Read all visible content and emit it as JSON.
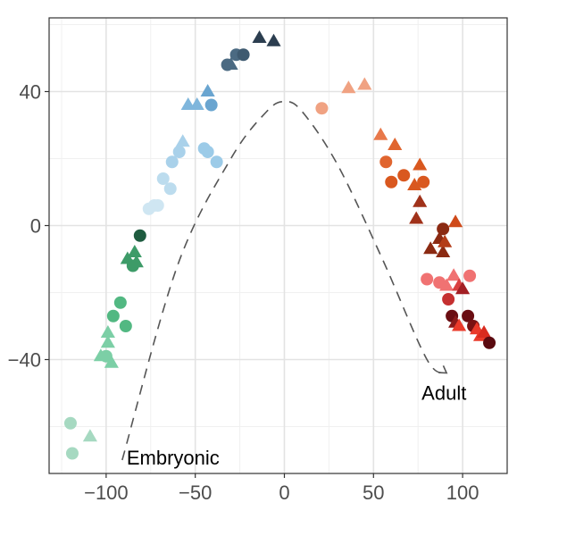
{
  "chart_data": {
    "type": "scatter",
    "title": "",
    "xlabel": "",
    "ylabel": "",
    "xlim": [
      -132,
      125
    ],
    "ylim": [
      -74,
      62
    ],
    "grid": true,
    "x_ticks": [
      -100,
      -50,
      0,
      50,
      100
    ],
    "x_tick_labels": [
      "−100",
      "−50",
      "0",
      "50",
      "100"
    ],
    "y_ticks": [
      -40,
      0,
      40
    ],
    "y_tick_labels": [
      "−40",
      "0",
      "40"
    ],
    "annotations": [
      {
        "text": "Embryonic",
        "x": -90,
        "y": -70
      },
      {
        "text": "Adult",
        "x": 77,
        "y": -52
      }
    ],
    "trajectory": [
      [
        -91,
        -70
      ],
      [
        -60,
        -12
      ],
      [
        -30,
        20
      ],
      [
        -10,
        34
      ],
      [
        0,
        37
      ],
      [
        10,
        34
      ],
      [
        30,
        18
      ],
      [
        55,
        -10
      ],
      [
        80,
        -40
      ],
      [
        91,
        -44
      ]
    ],
    "points": [
      {
        "x": -120,
        "y": -59,
        "shape": "circle",
        "color": "#a6d9c1"
      },
      {
        "x": -119,
        "y": -68,
        "shape": "circle",
        "color": "#a6d9c1"
      },
      {
        "x": -109,
        "y": -63,
        "shape": "triangle",
        "color": "#a6d9c1"
      },
      {
        "x": -103,
        "y": -39,
        "shape": "triangle",
        "color": "#7ccfa6"
      },
      {
        "x": -100,
        "y": -39,
        "shape": "circle",
        "color": "#7ccfa6"
      },
      {
        "x": -99,
        "y": -35,
        "shape": "triangle",
        "color": "#7ccfa6"
      },
      {
        "x": -99,
        "y": -32,
        "shape": "triangle",
        "color": "#7ccfa6"
      },
      {
        "x": -97,
        "y": -41,
        "shape": "triangle",
        "color": "#7ccfa6"
      },
      {
        "x": -96,
        "y": -27,
        "shape": "circle",
        "color": "#52b882"
      },
      {
        "x": -92,
        "y": -23,
        "shape": "circle",
        "color": "#52b882"
      },
      {
        "x": -89,
        "y": -30,
        "shape": "circle",
        "color": "#52b882"
      },
      {
        "x": -88,
        "y": -10,
        "shape": "triangle",
        "color": "#3d9b68"
      },
      {
        "x": -85,
        "y": -12,
        "shape": "circle",
        "color": "#3d9b68"
      },
      {
        "x": -84,
        "y": -8,
        "shape": "triangle",
        "color": "#3d9b68"
      },
      {
        "x": -83,
        "y": -11,
        "shape": "triangle",
        "color": "#3d9b68"
      },
      {
        "x": -81,
        "y": -3,
        "shape": "circle",
        "color": "#1f5c40"
      },
      {
        "x": -76,
        "y": 5,
        "shape": "circle",
        "color": "#cfe6f2"
      },
      {
        "x": -73,
        "y": 6,
        "shape": "circle",
        "color": "#cfe6f2"
      },
      {
        "x": -71,
        "y": 6,
        "shape": "circle",
        "color": "#cfe6f2"
      },
      {
        "x": -68,
        "y": 14,
        "shape": "circle",
        "color": "#bcdcee"
      },
      {
        "x": -64,
        "y": 11,
        "shape": "circle",
        "color": "#bcdcee"
      },
      {
        "x": -63,
        "y": 19,
        "shape": "circle",
        "color": "#a9d1ea"
      },
      {
        "x": -59,
        "y": 22,
        "shape": "circle",
        "color": "#a9d1ea"
      },
      {
        "x": -57,
        "y": 25,
        "shape": "triangle",
        "color": "#a9d1ea"
      },
      {
        "x": -54,
        "y": 36,
        "shape": "triangle",
        "color": "#7fb6dc"
      },
      {
        "x": -49,
        "y": 36,
        "shape": "triangle",
        "color": "#7fb6dc"
      },
      {
        "x": -45,
        "y": 23,
        "shape": "circle",
        "color": "#9ccbe8"
      },
      {
        "x": -43,
        "y": 22,
        "shape": "circle",
        "color": "#9ccbe8"
      },
      {
        "x": -43,
        "y": 40,
        "shape": "triangle",
        "color": "#6aa5d0"
      },
      {
        "x": -41,
        "y": 36,
        "shape": "circle",
        "color": "#6aa5d0"
      },
      {
        "x": -38,
        "y": 19,
        "shape": "circle",
        "color": "#9ccbe8"
      },
      {
        "x": -32,
        "y": 48,
        "shape": "circle",
        "color": "#4b6a82"
      },
      {
        "x": -30,
        "y": 48,
        "shape": "triangle",
        "color": "#4b6a82"
      },
      {
        "x": -27,
        "y": 51,
        "shape": "circle",
        "color": "#4b6a82"
      },
      {
        "x": -23,
        "y": 51,
        "shape": "circle",
        "color": "#3e5a70"
      },
      {
        "x": -14,
        "y": 56,
        "shape": "triangle",
        "color": "#2c3e50"
      },
      {
        "x": -6,
        "y": 55,
        "shape": "triangle",
        "color": "#2c3e50"
      },
      {
        "x": 21,
        "y": 35,
        "shape": "circle",
        "color": "#f0a282"
      },
      {
        "x": 36,
        "y": 41,
        "shape": "triangle",
        "color": "#f0a282"
      },
      {
        "x": 45,
        "y": 42,
        "shape": "triangle",
        "color": "#f0a282"
      },
      {
        "x": 54,
        "y": 27,
        "shape": "triangle",
        "color": "#e8784a"
      },
      {
        "x": 57,
        "y": 19,
        "shape": "circle",
        "color": "#e0652f"
      },
      {
        "x": 62,
        "y": 24,
        "shape": "triangle",
        "color": "#e0652f"
      },
      {
        "x": 60,
        "y": 13,
        "shape": "circle",
        "color": "#d9581f"
      },
      {
        "x": 67,
        "y": 15,
        "shape": "circle",
        "color": "#d9581f"
      },
      {
        "x": 73,
        "y": 12,
        "shape": "triangle",
        "color": "#d9581f"
      },
      {
        "x": 78,
        "y": 13,
        "shape": "circle",
        "color": "#d9581f"
      },
      {
        "x": 76,
        "y": 18,
        "shape": "triangle",
        "color": "#d9581f"
      },
      {
        "x": 76,
        "y": 7,
        "shape": "triangle",
        "color": "#a0321a"
      },
      {
        "x": 74,
        "y": 2,
        "shape": "triangle",
        "color": "#a0321a"
      },
      {
        "x": 82,
        "y": -7,
        "shape": "triangle",
        "color": "#8b2a12"
      },
      {
        "x": 87,
        "y": -4,
        "shape": "triangle",
        "color": "#8b2a12"
      },
      {
        "x": 89,
        "y": -8,
        "shape": "triangle",
        "color": "#8b2a12"
      },
      {
        "x": 89,
        "y": -1,
        "shape": "circle",
        "color": "#8b2a12"
      },
      {
        "x": 90,
        "y": -5,
        "shape": "triangle",
        "color": "#b33c18"
      },
      {
        "x": 96,
        "y": 1,
        "shape": "triangle",
        "color": "#cf4a1a"
      },
      {
        "x": 80,
        "y": -16,
        "shape": "circle",
        "color": "#f07272"
      },
      {
        "x": 87,
        "y": -17,
        "shape": "circle",
        "color": "#f07272"
      },
      {
        "x": 91,
        "y": -18,
        "shape": "triangle",
        "color": "#f07272"
      },
      {
        "x": 95,
        "y": -15,
        "shape": "triangle",
        "color": "#f07272"
      },
      {
        "x": 104,
        "y": -15,
        "shape": "circle",
        "color": "#f07272"
      },
      {
        "x": 98,
        "y": -18,
        "shape": "triangle",
        "color": "#d94040"
      },
      {
        "x": 92,
        "y": -22,
        "shape": "circle",
        "color": "#c53030"
      },
      {
        "x": 100,
        "y": -19,
        "shape": "triangle",
        "color": "#a31f24"
      },
      {
        "x": 94,
        "y": -27,
        "shape": "circle",
        "color": "#6a0d12"
      },
      {
        "x": 96,
        "y": -29,
        "shape": "triangle",
        "color": "#8b1a1a"
      },
      {
        "x": 98,
        "y": -30,
        "shape": "triangle",
        "color": "#ea3a2a"
      },
      {
        "x": 103,
        "y": -27,
        "shape": "circle",
        "color": "#6a0d12"
      },
      {
        "x": 106,
        "y": -30,
        "shape": "circle",
        "color": "#7a1212"
      },
      {
        "x": 108,
        "y": -31,
        "shape": "triangle",
        "color": "#ea3a2a"
      },
      {
        "x": 110,
        "y": -33,
        "shape": "triangle",
        "color": "#ea3a2a"
      },
      {
        "x": 112,
        "y": -32,
        "shape": "triangle",
        "color": "#d92b1f"
      },
      {
        "x": 115,
        "y": -35,
        "shape": "circle",
        "color": "#5a0a10"
      }
    ]
  }
}
